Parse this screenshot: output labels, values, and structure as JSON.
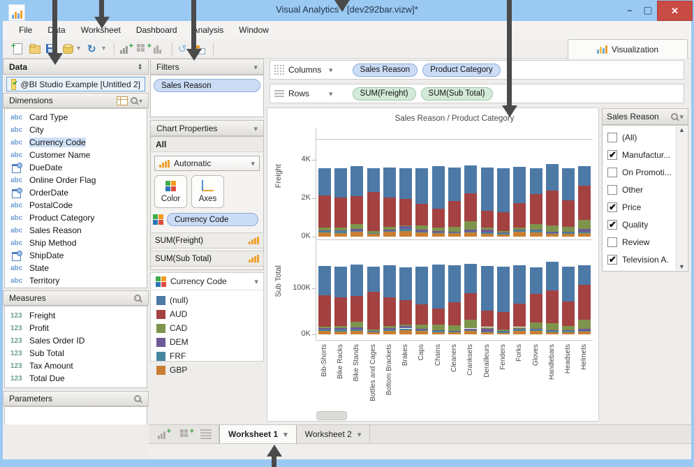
{
  "window": {
    "title": "Visual Analytics - [dev292bar.vizw]*"
  },
  "menus": [
    "File",
    "Data",
    "Worksheet",
    "Dashboard",
    "Analysis",
    "Window"
  ],
  "toolbar": {
    "icons": [
      "new-workbook",
      "open-file",
      "save",
      "data-source",
      "dropdown",
      "refresh",
      "dropdown",
      "sep",
      "add-worksheet",
      "add-dashboard",
      "duplicate-sheet",
      "sep",
      "swap-axes",
      "show-mark-labels",
      "sep"
    ]
  },
  "viz_tab": {
    "label": "Visualization"
  },
  "left_panel": {
    "data_header": "Data",
    "connection": "@BI Studio Example [Untitled 2]",
    "dimensions": {
      "header": "Dimensions",
      "items": [
        {
          "icon": "abc",
          "label": "Card Type"
        },
        {
          "icon": "abc",
          "label": "City"
        },
        {
          "icon": "abc",
          "label": "Currency Code",
          "selected": true
        },
        {
          "icon": "abc",
          "label": "Customer Name"
        },
        {
          "icon": "date",
          "label": "DueDate"
        },
        {
          "icon": "abc",
          "label": "Online Order Flag"
        },
        {
          "icon": "date",
          "label": "OrderDate"
        },
        {
          "icon": "abc",
          "label": "PostalCode"
        },
        {
          "icon": "abc",
          "label": "Product Category"
        },
        {
          "icon": "abc",
          "label": "Sales Reason"
        },
        {
          "icon": "abc",
          "label": "Ship Method"
        },
        {
          "icon": "date",
          "label": "ShipDate"
        },
        {
          "icon": "abc",
          "label": "State"
        },
        {
          "icon": "abc",
          "label": "Territory"
        }
      ]
    },
    "measures": {
      "header": "Measures",
      "items": [
        "Freight",
        "Profit",
        "Sales Order ID",
        "Sub Total",
        "Tax Amount",
        "Total Due"
      ]
    },
    "parameters": {
      "header": "Parameters"
    }
  },
  "filters_panel": {
    "header": "Filters",
    "pills": [
      "Sales Reason"
    ]
  },
  "chart_properties": {
    "header": "Chart Properties",
    "scope": "All",
    "chart_type": "Automatic",
    "color_button": "Color",
    "axes_button": "Axes",
    "color_field": "Currency Code",
    "field_rows": [
      "SUM(Freight)",
      "SUM(Sub Total)"
    ]
  },
  "legend": {
    "header": "Currency Code",
    "items": [
      {
        "label": "(null)",
        "color": "#4d79a7"
      },
      {
        "label": "AUD",
        "color": "#a34241"
      },
      {
        "label": "CAD",
        "color": "#7e944d"
      },
      {
        "label": "DEM",
        "color": "#6e5a97"
      },
      {
        "label": "FRF",
        "color": "#47879e"
      },
      {
        "label": "GBP",
        "color": "#c87f33"
      }
    ]
  },
  "shelves": {
    "columns": {
      "label": "Columns",
      "pills": [
        "Sales Reason",
        "Product Category"
      ]
    },
    "rows": {
      "label": "Rows",
      "pills": [
        "SUM(Freight)",
        "SUM(Sub Total)"
      ]
    }
  },
  "quick_filter": {
    "header": "Sales Reason",
    "items": [
      {
        "label": "(All)",
        "checked": false
      },
      {
        "label": "Manufactur...",
        "checked": true
      },
      {
        "label": "On Promoti...",
        "checked": false
      },
      {
        "label": "Other",
        "checked": false
      },
      {
        "label": "Price",
        "checked": true
      },
      {
        "label": "Quality",
        "checked": true
      },
      {
        "label": "Review",
        "checked": false
      },
      {
        "label": "Television  A.",
        "checked": true
      }
    ]
  },
  "sheet_tabs": [
    {
      "label": "Worksheet 1",
      "active": true
    },
    {
      "label": "Worksheet 2",
      "active": false
    }
  ],
  "chart_data": {
    "type": "bar",
    "stacked": true,
    "title": "Sales Reason / Product Category",
    "categories": [
      "Bib-Shorts",
      "Bike Racks",
      "Bike Stands",
      "Bottles and Cages",
      "Bottom Brackets",
      "Brakes",
      "Caps",
      "Chains",
      "Cleaners",
      "Cranksets",
      "Derailleurs",
      "Fenders",
      "Forks",
      "Gloves",
      "Handlebars",
      "Headsets",
      "Helmets"
    ],
    "legend_entries": [
      "(null)",
      "AUD",
      "CAD",
      "DEM",
      "FRF",
      "GBP"
    ],
    "panes": [
      {
        "ylabel": "Freight",
        "units": "K",
        "ymax": 5.1,
        "yticks": [
          {
            "v": 0,
            "label": "0K"
          },
          {
            "v": 2,
            "label": "2K"
          },
          {
            "v": 4,
            "label": "4K"
          }
        ],
        "series": [
          {
            "name": "GBP",
            "color": "#c87f33",
            "values": [
              0.22,
              0.2,
              0.25,
              0.15,
              0.25,
              0.3,
              0.22,
              0.18,
              0.18,
              0.22,
              0.15,
              0.1,
              0.25,
              0.22,
              0.15,
              0.15,
              0.2
            ]
          },
          {
            "name": "FRF",
            "color": "#47879e",
            "values": [
              0.08,
              0.1,
              0.05,
              0.03,
              0.05,
              0.1,
              0.05,
              0.05,
              0.04,
              0.05,
              0.06,
              0.08,
              0.08,
              0.1,
              0.05,
              0.06,
              0.07
            ]
          },
          {
            "name": "DEM",
            "color": "#6e5a97",
            "values": [
              0.04,
              0.03,
              0.12,
              0.02,
              0.08,
              0.15,
              0.08,
              0.06,
              0.05,
              0.1,
              0.15,
              0.05,
              0.03,
              0.05,
              0.05,
              0.05,
              0.12
            ]
          },
          {
            "name": "CAD",
            "color": "#7e944d",
            "values": [
              0.12,
              0.15,
              0.25,
              0.1,
              0.15,
              0.05,
              0.25,
              0.2,
              0.25,
              0.45,
              0.1,
              0.05,
              0.1,
              0.3,
              0.35,
              0.25,
              0.5
            ]
          },
          {
            "name": "AUD",
            "color": "#a34241",
            "values": [
              1.7,
              1.58,
              1.45,
              2.02,
              1.52,
              1.37,
              1.1,
              0.98,
              1.35,
              1.45,
              0.9,
              0.98,
              1.3,
              1.55,
              1.8,
              1.4,
              1.78
            ]
          },
          {
            "name": "(null)",
            "color": "#4d79a7",
            "values": [
              1.4,
              1.5,
              1.55,
              1.25,
              1.55,
              1.6,
              1.88,
              2.2,
              1.75,
              1.45,
              2.25,
              2.3,
              1.88,
              1.35,
              1.4,
              1.67,
              1.0
            ]
          }
        ]
      },
      {
        "ylabel": "Sub Total",
        "units": "K",
        "ymax": 197,
        "yticks": [
          {
            "v": 0,
            "label": "0K"
          },
          {
            "v": 100,
            "label": "100K"
          }
        ],
        "series": [
          {
            "name": "GBP",
            "color": "#c87f33",
            "values": [
              7,
              6,
              8,
              5,
              8,
              9,
              7,
              5,
              5,
              7,
              4,
              3,
              8,
              7,
              5,
              5,
              6
            ]
          },
          {
            "name": "FRF",
            "color": "#47879e",
            "values": [
              4,
              5,
              2,
              1,
              2,
              4,
              2,
              2,
              1,
              2,
              2,
              3,
              3,
              3,
              2,
              2,
              2
            ]
          },
          {
            "name": "DEM",
            "color": "#6e5a97",
            "values": [
              2,
              2,
              5,
              1,
              3,
              6,
              3,
              2,
              2,
              4,
              6,
              2,
              1,
              2,
              2,
              2,
              4
            ]
          },
          {
            "name": "CAD",
            "color": "#7e944d",
            "values": [
              4,
              6,
              13,
              4,
              6,
              2,
              10,
              13,
              12,
              19,
              4,
              2,
              4,
              14,
              15,
              10,
              20
            ]
          },
          {
            "name": "AUD",
            "color": "#a34241",
            "values": [
              68,
              61,
              55,
              82,
              61,
              54,
              43,
              34,
              50,
              58,
              36,
              38,
              50,
              62,
              72,
              53,
              76
            ]
          },
          {
            "name": "(null)",
            "color": "#4d79a7",
            "values": [
              63,
              67,
              69,
              54,
              70,
              71,
              82,
              95,
              80,
              63,
              96,
              99,
              84,
              58,
              61,
              75,
              42
            ]
          }
        ]
      }
    ]
  }
}
